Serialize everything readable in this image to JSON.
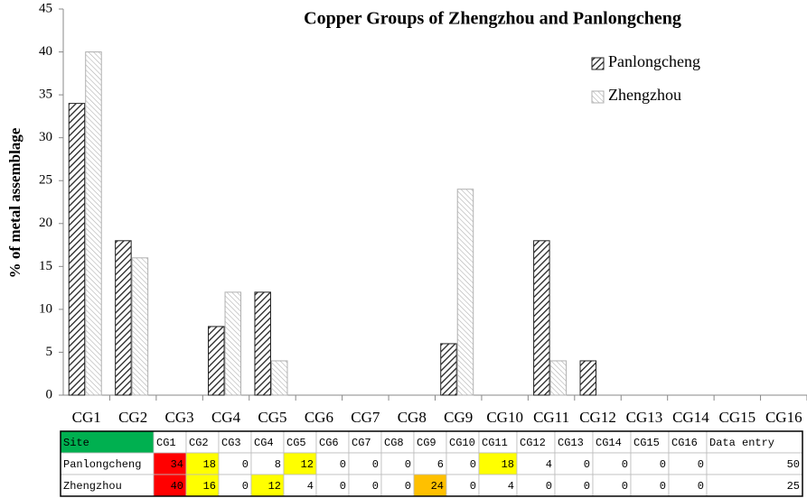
{
  "chart_data": {
    "type": "bar",
    "title": "Copper Groups of Zhengzhou and Panlongcheng",
    "y_label": "% of metal assemblage",
    "categories": [
      "CG1",
      "CG2",
      "CG3",
      "CG4",
      "CG5",
      "CG6",
      "CG7",
      "CG8",
      "CG9",
      "CG10",
      "CG11",
      "CG12",
      "CG13",
      "CG14",
      "CG15",
      "CG16"
    ],
    "series": [
      {
        "name": "Panlongcheng",
        "color": "#222222",
        "values": [
          34,
          18,
          0,
          8,
          12,
          0,
          0,
          0,
          6,
          0,
          18,
          4,
          0,
          0,
          0,
          0
        ]
      },
      {
        "name": "Zhengzhou",
        "color": "#b0b0b0",
        "values": [
          40,
          16,
          0,
          12,
          4,
          0,
          0,
          0,
          24,
          0,
          4,
          0,
          0,
          0,
          0,
          0
        ]
      }
    ],
    "ylim": [
      0,
      45
    ],
    "yticks": [
      0,
      5,
      10,
      15,
      20,
      25,
      30,
      35,
      40,
      45
    ],
    "grid": false,
    "legend": "upper right"
  },
  "table": {
    "header": {
      "cells": [
        "Site",
        "CG1",
        "CG2",
        "CG3",
        "CG4",
        "CG5",
        "CG6",
        "CG7",
        "CG8",
        "CG9",
        "CG10",
        "CG11",
        "CG12",
        "CG13",
        "CG14",
        "CG15",
        "CG16",
        "Data entry"
      ],
      "colors": [
        "#00b050",
        null,
        null,
        null,
        null,
        null,
        null,
        null,
        null,
        null,
        null,
        null,
        null,
        null,
        null,
        null,
        null,
        null
      ]
    },
    "rows": [
      {
        "cells": [
          "Panlongcheng",
          34,
          18,
          0,
          8,
          12,
          0,
          0,
          0,
          6,
          0,
          18,
          4,
          0,
          0,
          0,
          0,
          50
        ],
        "colors": [
          null,
          "#ff0000",
          "#ffff00",
          null,
          null,
          "#ffff00",
          null,
          null,
          null,
          null,
          null,
          "#ffff00",
          null,
          null,
          null,
          null,
          null,
          null
        ]
      },
      {
        "cells": [
          "Zhengzhou",
          40,
          16,
          0,
          12,
          4,
          0,
          0,
          0,
          24,
          0,
          4,
          0,
          0,
          0,
          0,
          0,
          25
        ],
        "colors": [
          null,
          "#ff0000",
          "#ffff00",
          null,
          "#ffff00",
          null,
          null,
          null,
          null,
          "#ffc000",
          null,
          null,
          null,
          null,
          null,
          null,
          null,
          null
        ]
      }
    ]
  }
}
